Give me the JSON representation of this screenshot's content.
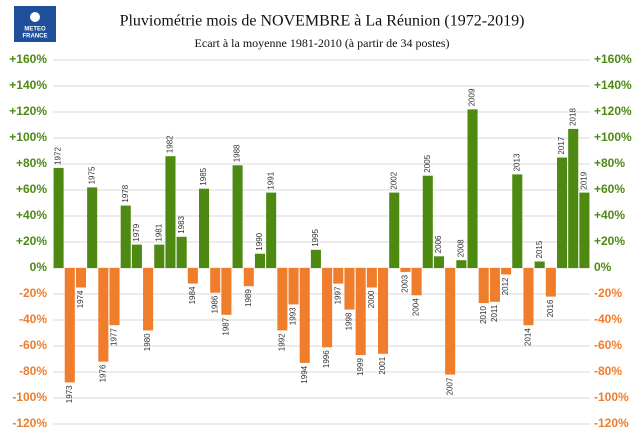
{
  "chart_data": {
    "type": "bar",
    "title": "Pluviométrie mois de NOVEMBRE à La Réunion (1972-2019)",
    "subtitle": "Ecart à la moyenne 1981-2010 (à partir de 34 postes)",
    "logo_text": [
      "METEO",
      "FRANCE"
    ],
    "categories": [
      "1972",
      "1973",
      "1974",
      "1975",
      "1976",
      "1977",
      "1978",
      "1979",
      "1980",
      "1981",
      "1982",
      "1983",
      "1984",
      "1985",
      "1986",
      "1987",
      "1988",
      "1989",
      "1990",
      "1991",
      "1992",
      "1993",
      "1994",
      "1995",
      "1996",
      "1997",
      "1998",
      "1999",
      "2000",
      "2001",
      "2002",
      "2003",
      "2004",
      "2005",
      "2006",
      "2007",
      "2008",
      "2009",
      "2010",
      "2011",
      "2012",
      "2013",
      "2014",
      "2015",
      "2016",
      "2017",
      "2018",
      "2019"
    ],
    "values": [
      77,
      -88,
      -15,
      62,
      -72,
      -44,
      48,
      18,
      -48,
      18,
      86,
      24,
      -12,
      61,
      -19,
      -36,
      79,
      -14,
      11,
      58,
      -48,
      -28,
      -73,
      14,
      -61,
      -12,
      -32,
      -67,
      -15,
      -66,
      58,
      -3,
      -21,
      71,
      9,
      -82,
      6,
      122,
      -27,
      -26,
      -5,
      72,
      -44,
      5,
      -22,
      85,
      107,
      58
    ],
    "positive_color": "#4e8a12",
    "negative_color": "#ef7d2c",
    "ylim": [
      -120,
      160
    ],
    "yticks": [
      {
        "value": -120,
        "label": "-120%"
      },
      {
        "value": -100,
        "label": "-100%"
      },
      {
        "value": -80,
        "label": "-80%"
      },
      {
        "value": -60,
        "label": "-60%"
      },
      {
        "value": -40,
        "label": "-40%"
      },
      {
        "value": -20,
        "label": "-20%"
      },
      {
        "value": 0,
        "label": "0%"
      },
      {
        "value": 20,
        "label": "+20%"
      },
      {
        "value": 40,
        "label": "+40%"
      },
      {
        "value": 60,
        "label": "+60%"
      },
      {
        "value": 80,
        "label": "+80%"
      },
      {
        "value": 100,
        "label": "+100%"
      },
      {
        "value": 120,
        "label": "+120%"
      },
      {
        "value": 140,
        "label": "+140%"
      },
      {
        "value": 160,
        "label": "+160%"
      }
    ],
    "grid": true
  }
}
